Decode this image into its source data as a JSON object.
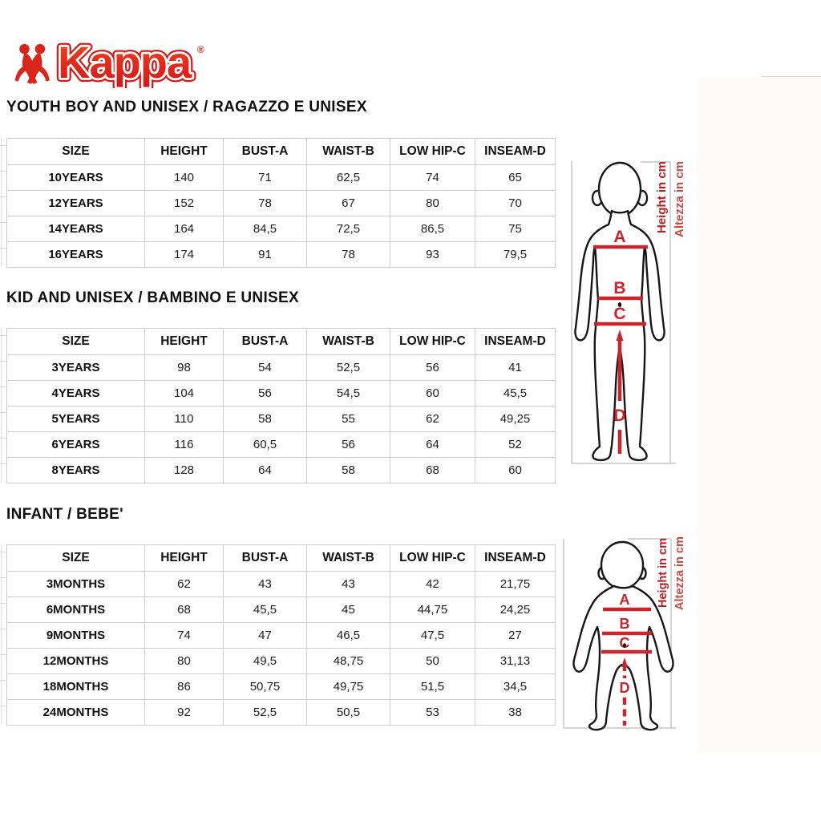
{
  "logo": {
    "brand": "Kappa",
    "registered_mark": "®"
  },
  "colors": {
    "kappa_red": "#da251c",
    "measure_red": "#c8252c",
    "caption_red_en": "#b92025",
    "caption_red_it": "#c94a40",
    "table_border": "#cccccc",
    "figure_line_gray": "#b9b9b9"
  },
  "sections": [
    {
      "title": "YOUTH BOY AND UNISEX / RAGAZZO E UNISEX",
      "table": {
        "columns": [
          "SIZE",
          "HEIGHT",
          "BUST-A",
          "WAIST-B",
          "LOW HIP-C",
          "INSEAM-D"
        ],
        "rows": [
          [
            "10YEARS",
            "140",
            "71",
            "62,5",
            "74",
            "65"
          ],
          [
            "12YEARS",
            "152",
            "78",
            "67",
            "80",
            "70"
          ],
          [
            "14YEARS",
            "164",
            "84,5",
            "72,5",
            "86,5",
            "75"
          ],
          [
            "16YEARS",
            "174",
            "91",
            "78",
            "93",
            "79,5"
          ]
        ]
      }
    },
    {
      "title": "KID AND UNISEX / BAMBINO E UNISEX",
      "table": {
        "columns": [
          "SIZE",
          "HEIGHT",
          "BUST-A",
          "WAIST-B",
          "LOW HIP-C",
          "INSEAM-D"
        ],
        "rows": [
          [
            "3YEARS",
            "98",
            "54",
            "52,5",
            "56",
            "41"
          ],
          [
            "4YEARS",
            "104",
            "56",
            "54,5",
            "60",
            "45,5"
          ],
          [
            "5YEARS",
            "110",
            "58",
            "55",
            "62",
            "49,25"
          ],
          [
            "6YEARS",
            "116",
            "60,5",
            "56",
            "64",
            "52"
          ],
          [
            "8YEARS",
            "128",
            "64",
            "58",
            "68",
            "60"
          ]
        ]
      }
    },
    {
      "title": "INFANT / BEBE'",
      "table": {
        "columns": [
          "SIZE",
          "HEIGHT",
          "BUST-A",
          "WAIST-B",
          "LOW HIP-C",
          "INSEAM-D"
        ],
        "rows": [
          [
            "3MONTHS",
            "62",
            "43",
            "43",
            "42",
            "21,75"
          ],
          [
            "6MONTHS",
            "68",
            "45,5",
            "45",
            "44,75",
            "24,25"
          ],
          [
            "9MONTHS",
            "74",
            "47",
            "46,5",
            "47,5",
            "27"
          ],
          [
            "12MONTHS",
            "80",
            "49,5",
            "48,75",
            "50",
            "31,13"
          ],
          [
            "18MONTHS",
            "86",
            "50,75",
            "49,75",
            "51,5",
            "34,5"
          ],
          [
            "24MONTHS",
            "92",
            "52,5",
            "50,5",
            "53",
            "38"
          ]
        ]
      }
    }
  ],
  "diagram": {
    "bust_label": "A",
    "waist_label": "B",
    "low_hip_label": "C",
    "inseam_label": "D",
    "height_caption_en": "Height in cm",
    "height_caption_it": "Altezza in cm"
  }
}
